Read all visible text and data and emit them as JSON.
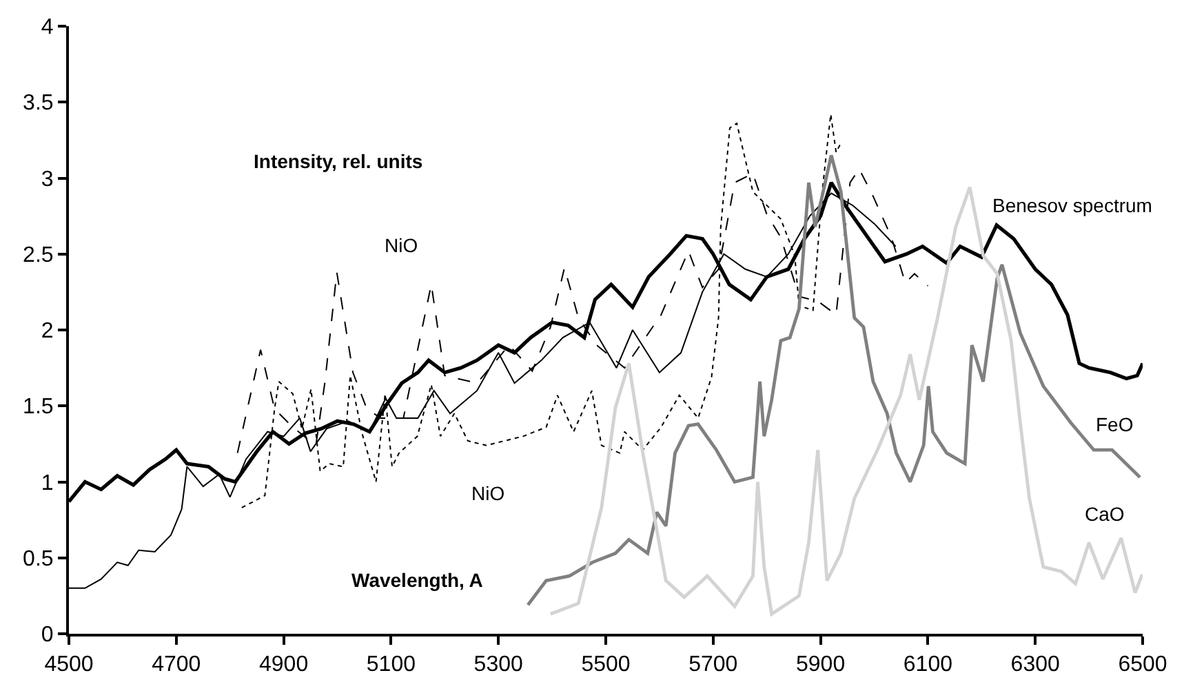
{
  "chart_data": {
    "type": "line",
    "xlabel": "Wavelength, A",
    "ylabel": "Intensity, rel. units",
    "xlim": [
      4500,
      6500
    ],
    "xticks": [
      4500,
      4700,
      4900,
      5100,
      5300,
      5500,
      5700,
      5900,
      6100,
      6300,
      6500
    ],
    "ylim": [
      0,
      4
    ],
    "yticks": [
      0,
      0.5,
      1,
      1.5,
      2,
      2.5,
      3,
      3.5,
      4
    ],
    "legend": false,
    "marker": "none",
    "series": [
      {
        "name": "Benesov spectrum",
        "color": "#000000",
        "line_style": "solid",
        "x": [
          4500,
          4530,
          4560,
          4590,
          4620,
          4650,
          4680,
          4700,
          4720,
          4760,
          4790,
          4810,
          4850,
          4880,
          4910,
          4940,
          4970,
          5000,
          5030,
          5060,
          5090,
          5120,
          5150,
          5170,
          5200,
          5230,
          5260,
          5300,
          5330,
          5360,
          5400,
          5430,
          5460,
          5480,
          5510,
          5550,
          5580,
          5620,
          5650,
          5680,
          5700,
          5730,
          5770,
          5800,
          5840,
          5870,
          5900,
          5920,
          5950,
          5990,
          6020,
          6060,
          6090,
          6135,
          6160,
          6200,
          6228,
          6260,
          6300,
          6330,
          6360,
          6382,
          6400,
          6440,
          6470,
          6490,
          6500
        ],
        "values": [
          0.87,
          1.0,
          0.95,
          1.04,
          0.98,
          1.08,
          1.15,
          1.21,
          1.12,
          1.1,
          1.02,
          1.0,
          1.2,
          1.33,
          1.25,
          1.32,
          1.35,
          1.4,
          1.38,
          1.33,
          1.5,
          1.65,
          1.72,
          1.8,
          1.72,
          1.75,
          1.8,
          1.9,
          1.85,
          1.95,
          2.05,
          2.03,
          1.95,
          2.2,
          2.3,
          2.15,
          2.35,
          2.5,
          2.62,
          2.6,
          2.5,
          2.3,
          2.2,
          2.35,
          2.4,
          2.6,
          2.75,
          2.97,
          2.8,
          2.6,
          2.45,
          2.5,
          2.55,
          2.44,
          2.55,
          2.48,
          2.69,
          2.6,
          2.4,
          2.3,
          2.1,
          1.78,
          1.75,
          1.72,
          1.68,
          1.7,
          1.78
        ]
      },
      {
        "color": "#000000",
        "line_style": "solid",
        "x": [
          4500,
          4530,
          4560,
          4590,
          4610,
          4630,
          4660,
          4690,
          4710,
          4720,
          4750,
          4780,
          4800,
          4830,
          4870,
          4900,
          4930,
          4950,
          4980,
          5020,
          5060,
          5090,
          5110,
          5150,
          5180,
          5210,
          5260,
          5300,
          5330,
          5380,
          5420,
          5470,
          5520,
          5550,
          5600,
          5640,
          5680,
          5720,
          5760,
          5800,
          5840,
          5880,
          5920,
          5960,
          6000,
          6040
        ],
        "values": [
          0.3,
          0.3,
          0.36,
          0.47,
          0.45,
          0.55,
          0.54,
          0.65,
          0.82,
          1.1,
          0.97,
          1.05,
          0.9,
          1.15,
          1.33,
          1.3,
          1.42,
          1.2,
          1.35,
          1.4,
          1.33,
          1.55,
          1.42,
          1.42,
          1.6,
          1.45,
          1.6,
          1.85,
          1.65,
          1.8,
          1.95,
          2.05,
          1.75,
          2.0,
          1.72,
          1.85,
          2.25,
          2.5,
          2.4,
          2.35,
          2.5,
          2.75,
          2.9,
          2.82,
          2.7,
          2.55
        ]
      },
      {
        "name": "NiO",
        "color": "#000000",
        "line_style": "dashed",
        "x": [
          4814,
          4857,
          4883,
          4917,
          4960,
          4977,
          4999,
          5029,
          5055,
          5081,
          5123,
          5175,
          5200,
          5260,
          5320,
          5363,
          5397,
          5423,
          5449,
          5483,
          5535,
          5603,
          5654,
          5680,
          5710,
          5740,
          5774,
          5800,
          5826,
          5860,
          5895,
          5929,
          5955,
          5972,
          5998,
          6032,
          6058,
          6075,
          6100
        ],
        "values": [
          1.19,
          1.87,
          1.48,
          1.36,
          1.24,
          1.66,
          2.38,
          1.72,
          1.48,
          1.42,
          1.42,
          2.3,
          1.7,
          1.65,
          1.9,
          1.73,
          2.02,
          2.41,
          2.08,
          1.9,
          1.75,
          2.1,
          2.52,
          2.28,
          2.4,
          2.97,
          3.03,
          2.76,
          2.61,
          2.22,
          2.19,
          2.1,
          2.97,
          3.06,
          2.88,
          2.61,
          2.31,
          2.37,
          2.29
        ]
      },
      {
        "name": "NiO",
        "color": "#000000",
        "line_style": "dotted",
        "x": [
          4822,
          4865,
          4883,
          4891,
          4917,
          4934,
          4951,
          4968,
          4985,
          5011,
          5024,
          5046,
          5072,
          5089,
          5102,
          5115,
          5149,
          5175,
          5192,
          5218,
          5243,
          5277,
          5346,
          5389,
          5410,
          5440,
          5474,
          5492,
          5526,
          5535,
          5569,
          5603,
          5637,
          5672,
          5697,
          5710,
          5714,
          5731,
          5744,
          5774,
          5826,
          5852,
          5860,
          5886,
          5903,
          5919,
          5929,
          5938
        ],
        "values": [
          0.83,
          0.91,
          1.48,
          1.66,
          1.58,
          1.35,
          1.61,
          1.07,
          1.12,
          1.1,
          1.7,
          1.32,
          1.0,
          1.58,
          1.1,
          1.19,
          1.3,
          1.64,
          1.3,
          1.45,
          1.27,
          1.24,
          1.3,
          1.36,
          1.57,
          1.33,
          1.6,
          1.24,
          1.19,
          1.33,
          1.21,
          1.36,
          1.57,
          1.42,
          1.69,
          2.08,
          2.67,
          3.33,
          3.36,
          2.91,
          2.73,
          2.49,
          2.16,
          2.13,
          2.91,
          3.42,
          3.17,
          3.23
        ]
      },
      {
        "name": "FeO",
        "color": "#808080",
        "line_style": "solid",
        "x": [
          5355,
          5389,
          5432,
          5475,
          5518,
          5543,
          5578,
          5595,
          5612,
          5629,
          5654,
          5672,
          5706,
          5740,
          5774,
          5787,
          5795,
          5809,
          5826,
          5843,
          5860,
          5878,
          5890,
          5903,
          5920,
          5938,
          5963,
          5980,
          5998,
          6024,
          6041,
          6067,
          6092,
          6101,
          6109,
          6135,
          6169,
          6182,
          6203,
          6229,
          6238,
          6272,
          6315,
          6366,
          6409,
          6443,
          6495
        ],
        "values": [
          0.19,
          0.35,
          0.38,
          0.47,
          0.53,
          0.62,
          0.53,
          0.8,
          0.71,
          1.19,
          1.37,
          1.38,
          1.21,
          1.0,
          1.03,
          1.66,
          1.3,
          1.54,
          1.93,
          1.95,
          2.14,
          2.97,
          2.68,
          2.88,
          3.15,
          2.91,
          2.08,
          2.02,
          1.66,
          1.45,
          1.19,
          1.0,
          1.24,
          1.63,
          1.33,
          1.19,
          1.12,
          1.9,
          1.66,
          2.34,
          2.43,
          1.98,
          1.63,
          1.39,
          1.21,
          1.21,
          1.03
        ]
      },
      {
        "name": "CaO",
        "color": "#d3d3d3",
        "line_style": "solid",
        "x": [
          5397,
          5449,
          5492,
          5518,
          5543,
          5569,
          5586,
          5612,
          5646,
          5689,
          5740,
          5774,
          5783,
          5795,
          5809,
          5843,
          5860,
          5878,
          5895,
          5912,
          5938,
          5963,
          6006,
          6049,
          6067,
          6084,
          6118,
          6152,
          6178,
          6203,
          6229,
          6255,
          6272,
          6289,
          6315,
          6349,
          6375,
          6400,
          6426,
          6460,
          6486,
          6499
        ],
        "values": [
          0.13,
          0.2,
          0.83,
          1.49,
          1.78,
          1.19,
          0.86,
          0.35,
          0.24,
          0.38,
          0.18,
          0.38,
          1.0,
          0.44,
          0.13,
          0.21,
          0.25,
          0.6,
          1.21,
          0.35,
          0.53,
          0.89,
          1.21,
          1.57,
          1.84,
          1.54,
          2.08,
          2.68,
          2.94,
          2.49,
          2.37,
          1.93,
          1.39,
          0.89,
          0.44,
          0.41,
          0.33,
          0.6,
          0.36,
          0.63,
          0.27,
          0.39
        ]
      }
    ]
  }
}
